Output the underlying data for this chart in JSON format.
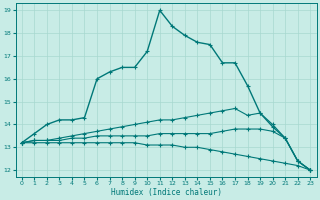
{
  "xlabel": "Humidex (Indice chaleur)",
  "xlim": [
    -0.5,
    23.5
  ],
  "ylim": [
    11.7,
    19.3
  ],
  "yticks": [
    12,
    13,
    14,
    15,
    16,
    17,
    18,
    19
  ],
  "xticks": [
    0,
    1,
    2,
    3,
    4,
    5,
    6,
    7,
    8,
    9,
    10,
    11,
    12,
    13,
    14,
    15,
    16,
    17,
    18,
    19,
    20,
    21,
    22,
    23
  ],
  "background_color": "#c8ece6",
  "grid_color": "#a8d8d0",
  "line_color": "#007878",
  "lines": [
    [
      13.2,
      13.6,
      14.0,
      14.2,
      14.2,
      14.3,
      16.0,
      16.3,
      16.5,
      16.5,
      17.2,
      19.0,
      18.3,
      17.9,
      17.6,
      17.5,
      16.7,
      16.7,
      15.7,
      14.5,
      13.9,
      13.4,
      12.4,
      12.0
    ],
    [
      13.2,
      13.3,
      13.3,
      13.4,
      13.5,
      13.6,
      13.7,
      13.8,
      13.9,
      14.0,
      14.1,
      14.2,
      14.2,
      14.3,
      14.4,
      14.5,
      14.6,
      14.7,
      14.4,
      14.5,
      14.0,
      13.4,
      12.4,
      12.0
    ],
    [
      13.2,
      13.3,
      13.3,
      13.3,
      13.4,
      13.4,
      13.5,
      13.5,
      13.5,
      13.5,
      13.5,
      13.6,
      13.6,
      13.6,
      13.6,
      13.6,
      13.7,
      13.8,
      13.8,
      13.8,
      13.7,
      13.4,
      12.4,
      12.0
    ],
    [
      13.2,
      13.2,
      13.2,
      13.2,
      13.2,
      13.2,
      13.2,
      13.2,
      13.2,
      13.2,
      13.1,
      13.1,
      13.1,
      13.0,
      13.0,
      12.9,
      12.8,
      12.7,
      12.6,
      12.5,
      12.4,
      12.3,
      12.2,
      12.0
    ]
  ]
}
